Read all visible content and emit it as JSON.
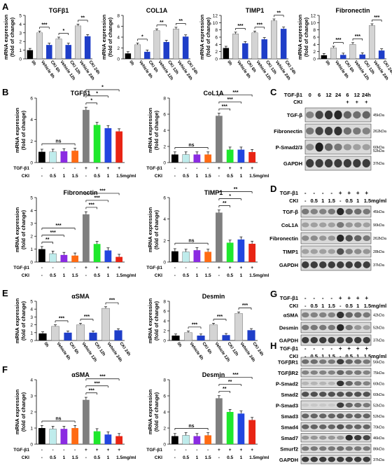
{
  "panels": {
    "A": "A",
    "B": "B",
    "C": "C",
    "D": "D",
    "E": "E",
    "F": "F",
    "G": "G",
    "H": "H"
  },
  "colors": {
    "black": "#000000",
    "light_gray": "#d4d4d4",
    "blue": "#1f3ec8",
    "dark_gray": "#7f7f7f",
    "cyan": "#bfecec",
    "magenta": "#8a2be2",
    "orange": "#ff6a13",
    "green": "#1ee82c",
    "mid_blue": "#2246e0",
    "red": "#e82414"
  },
  "labels": {
    "ylabel": "mRNA expression\n(fold of change)",
    "ylabel_line1": "mRNA expression",
    "ylabel_line2": "(fold of change)",
    "time_cats": [
      "0h",
      "Vehicle 6h",
      "CKI 6h",
      "Vehicle 12h",
      "CKI 12h",
      "Vehicle 24h",
      "CKI 24h"
    ],
    "tgf_row": [
      "-",
      "-",
      "-",
      "-",
      "+",
      "+",
      "+",
      "+"
    ],
    "cki_row": [
      "-",
      "0.5",
      "1",
      "1.5",
      "-",
      "0.5",
      "1",
      "1.5mg/ml"
    ],
    "tgf_label": "TGF-β1",
    "cki_label": "CKI"
  },
  "chart_data": [
    {
      "panel": "A",
      "type": "bar",
      "title": "TGFβ1",
      "ylim": [
        0,
        5
      ],
      "yticks": [
        0,
        1,
        2,
        3,
        4,
        5
      ],
      "categories": [
        "0h",
        "Vehicle 6h",
        "CKI 6h",
        "Vehicle 12h",
        "CKI 12h",
        "Vehicle 24h",
        "CKI 24h"
      ],
      "values": [
        1.0,
        3.0,
        1.6,
        2.3,
        1.6,
        3.8,
        2.6
      ],
      "sig": [
        {
          "a": 1,
          "b": 2,
          "t": "***"
        },
        {
          "a": 3,
          "b": 4,
          "t": "*"
        },
        {
          "a": 5,
          "b": 6,
          "t": "**"
        }
      ]
    },
    {
      "panel": "A",
      "type": "bar",
      "title": "COL1A",
      "ylim": [
        0,
        8
      ],
      "yticks": [
        0,
        2,
        4,
        6,
        8
      ],
      "categories": [
        "0h",
        "Vehicle 6h",
        "CKI 6h",
        "Vehicle 12h",
        "CKI 12h",
        "Vehicle 24h",
        "CKI 24h"
      ],
      "values": [
        1.0,
        2.6,
        1.3,
        5.2,
        3.1,
        5.5,
        4.1
      ],
      "sig": [
        {
          "a": 1,
          "b": 2,
          "t": "*"
        },
        {
          "a": 3,
          "b": 4,
          "t": "**"
        },
        {
          "a": 5,
          "b": 6,
          "t": "**"
        }
      ]
    },
    {
      "panel": "A",
      "type": "bar",
      "title": "TIMP1",
      "ylim": [
        0,
        12
      ],
      "yticks": [
        0,
        2,
        4,
        6,
        8,
        10,
        12
      ],
      "categories": [
        "0h",
        "Vehicle 6h",
        "CKI 6h",
        "Vehicle 12h",
        "CKI 12h",
        "Vehicle 24h",
        "CKI 24h"
      ],
      "values": [
        3.0,
        6.9,
        4.3,
        7.2,
        5.4,
        10.5,
        8.3
      ],
      "sig": [
        {
          "a": 1,
          "b": 2,
          "t": "***"
        },
        {
          "a": 3,
          "b": 4,
          "t": "***"
        },
        {
          "a": 5,
          "b": 6,
          "t": "**"
        }
      ]
    },
    {
      "panel": "A",
      "type": "bar",
      "title": "Fibronectin",
      "ylim": [
        0,
        12
      ],
      "yticks": [
        0,
        2,
        4,
        6,
        8,
        10,
        12
      ],
      "categories": [
        "0h",
        "Vehicle 6h",
        "CKI 6h",
        "Vehicle 12h",
        "CKI 12h",
        "Vehicle 24h",
        "CKI 24h"
      ],
      "values": [
        1.0,
        3.0,
        1.1,
        4.0,
        1.2,
        9.2,
        2.3
      ],
      "sig": [
        {
          "a": 1,
          "b": 2,
          "t": "***"
        },
        {
          "a": 3,
          "b": 4,
          "t": "***"
        },
        {
          "a": 5,
          "b": 6,
          "t": "***"
        }
      ]
    },
    {
      "panel": "B",
      "type": "bar",
      "title": "TGFβ1",
      "ylim": [
        0,
        6
      ],
      "yticks": [
        0,
        2,
        4,
        6
      ],
      "values": [
        1.0,
        1.0,
        1.05,
        1.1,
        4.9,
        3.5,
        3.2,
        2.9
      ],
      "sig": [
        {
          "a": 0,
          "b": 3,
          "t": "ns"
        },
        {
          "a": 4,
          "b": 5,
          "t": "*"
        },
        {
          "a": 4,
          "b": 6,
          "t": "*"
        },
        {
          "a": 4,
          "b": 7,
          "t": "*"
        }
      ]
    },
    {
      "panel": "B",
      "type": "bar",
      "title": "CoL1A",
      "ylim": [
        0,
        8
      ],
      "yticks": [
        0,
        2,
        4,
        6,
        8
      ],
      "values": [
        1.0,
        1.0,
        1.0,
        1.0,
        5.8,
        1.6,
        1.6,
        1.3
      ],
      "sig": [
        {
          "a": 0,
          "b": 3,
          "t": "ns"
        },
        {
          "a": 4,
          "b": 5,
          "t": "***"
        },
        {
          "a": 4,
          "b": 6,
          "t": "***"
        },
        {
          "a": 4,
          "b": 7,
          "t": "***"
        }
      ]
    },
    {
      "panel": "B",
      "type": "bar",
      "title": "Fibronectin",
      "ylim": [
        0,
        5
      ],
      "yticks": [
        0,
        1,
        2,
        3,
        4,
        5
      ],
      "values": [
        1.0,
        0.65,
        0.55,
        0.5,
        3.7,
        1.4,
        0.9,
        0.4
      ],
      "sig": [
        {
          "a": 0,
          "b": 1,
          "t": "**"
        },
        {
          "a": 0,
          "b": 2,
          "t": "***"
        },
        {
          "a": 0,
          "b": 3,
          "t": "***"
        },
        {
          "a": 4,
          "b": 5,
          "t": "***"
        },
        {
          "a": 4,
          "b": 6,
          "t": "***"
        },
        {
          "a": 4,
          "b": 7,
          "t": "***"
        }
      ]
    },
    {
      "panel": "B",
      "type": "bar",
      "title": "TIMP1",
      "ylim": [
        0,
        6
      ],
      "yticks": [
        0,
        2,
        4,
        6
      ],
      "values": [
        1.0,
        0.95,
        1.1,
        0.95,
        4.6,
        1.8,
        2.1,
        1.7
      ],
      "sig": [
        {
          "a": 0,
          "b": 3,
          "t": "ns"
        },
        {
          "a": 4,
          "b": 5,
          "t": "**"
        },
        {
          "a": 4,
          "b": 6,
          "t": "*"
        },
        {
          "a": 4,
          "b": 7,
          "t": "**"
        }
      ]
    },
    {
      "panel": "E",
      "type": "bar",
      "title": "αSMA",
      "ylim": [
        0,
        5
      ],
      "yticks": [
        0,
        1,
        2,
        3,
        4,
        5
      ],
      "categories": [
        "0h",
        "Vehicle 6h",
        "CKI 6h",
        "Vehicle 12h",
        "CKI 12h",
        "Vehicle 24h",
        "CKI 24h"
      ],
      "values": [
        0.9,
        1.8,
        1.0,
        2.0,
        1.0,
        4.1,
        1.3
      ],
      "sig": [
        {
          "a": 1,
          "b": 2,
          "t": "***"
        },
        {
          "a": 3,
          "b": 4,
          "t": "***"
        },
        {
          "a": 5,
          "b": 6,
          "t": "***"
        }
      ]
    },
    {
      "panel": "E",
      "type": "bar",
      "title": "Desmin",
      "ylim": [
        0,
        8
      ],
      "yticks": [
        0,
        2,
        4,
        6,
        8
      ],
      "categories": [
        "0h",
        "Vehicle 6h",
        "CKI 6h",
        "Vehicle 12h",
        "CKI 12h",
        "Vehicle 24h",
        "CKI 24h"
      ],
      "values": [
        1.0,
        1.6,
        1.0,
        3.2,
        1.1,
        5.5,
        2.1
      ],
      "sig": [
        {
          "a": 1,
          "b": 2,
          "t": "***"
        },
        {
          "a": 3,
          "b": 4,
          "t": "***"
        },
        {
          "a": 5,
          "b": 6,
          "t": "***"
        }
      ]
    },
    {
      "panel": "F",
      "type": "bar",
      "title": "αSMA",
      "ylim": [
        0,
        4
      ],
      "yticks": [
        0,
        1,
        2,
        3,
        4
      ],
      "values": [
        1.0,
        0.95,
        0.95,
        1.0,
        2.75,
        0.8,
        0.6,
        0.5
      ],
      "sig": [
        {
          "a": 0,
          "b": 3,
          "t": "ns"
        },
        {
          "a": 4,
          "b": 5,
          "t": "***"
        },
        {
          "a": 4,
          "b": 6,
          "t": "***"
        },
        {
          "a": 4,
          "b": 7,
          "t": "***"
        }
      ]
    },
    {
      "panel": "F",
      "type": "bar",
      "title": "Desmin",
      "ylim": [
        0,
        8
      ],
      "yticks": [
        0,
        2,
        4,
        6,
        8
      ],
      "values": [
        1.0,
        1.1,
        1.0,
        1.1,
        5.7,
        4.0,
        3.8,
        3.0
      ],
      "sig": [
        {
          "a": 0,
          "b": 3,
          "t": "ns"
        },
        {
          "a": 4,
          "b": 5,
          "t": "**"
        },
        {
          "a": 4,
          "b": 6,
          "t": "**"
        },
        {
          "a": 4,
          "b": 7,
          "t": "***"
        }
      ]
    }
  ],
  "blots": {
    "C": {
      "tgf_label": "TGF-β1",
      "cki_label": "CKI",
      "times": [
        "0",
        "6",
        "12",
        "24",
        "6",
        "12",
        "24h"
      ],
      "cki": [
        "",
        "",
        "",
        "",
        "+",
        "+",
        "+"
      ],
      "bands": [
        {
          "name": "TGF-β",
          "kda": "45kDa",
          "intensity": [
            0.45,
            0.75,
            0.85,
            0.9,
            0.6,
            0.55,
            0.6
          ]
        },
        {
          "name": "Fibronectin",
          "kda": "262kDa",
          "intensity": [
            0.5,
            0.75,
            0.8,
            0.85,
            0.55,
            0.5,
            0.45
          ]
        },
        {
          "name": "P-Smad2/3",
          "kda": "60kDa",
          "intensity": [
            0.4,
            0.95,
            0.6,
            0.5,
            0.35,
            0.3,
            0.3
          ]
        },
        {
          "name": "",
          "kda": "52kDa",
          "intensity": []
        },
        {
          "name": "GAPDH",
          "kda": "37kDa",
          "intensity": [
            0.8,
            0.8,
            0.8,
            0.8,
            0.8,
            0.8,
            0.8
          ]
        }
      ]
    },
    "D": {
      "tgf": [
        "-",
        "-",
        "-",
        "-",
        "+",
        "+",
        "+",
        "+"
      ],
      "cki": [
        "-",
        "0.5",
        "1",
        "1.5",
        "-",
        "0.5",
        "1",
        "1.5mg/ml"
      ],
      "bands": [
        {
          "name": "TGF-β",
          "kda": "45kDa",
          "intensity": [
            0.5,
            0.45,
            0.45,
            0.5,
            0.9,
            0.6,
            0.55,
            0.5
          ]
        },
        {
          "name": "CoL1A",
          "kda": "90kDa",
          "intensity": [
            0.3,
            0.3,
            0.3,
            0.3,
            0.5,
            0.35,
            0.35,
            0.3
          ]
        },
        {
          "name": "Fibronectin",
          "kda": "262kDa",
          "intensity": [
            0.4,
            0.4,
            0.35,
            0.35,
            0.9,
            0.7,
            0.6,
            0.5
          ]
        },
        {
          "name": "TIMP1",
          "kda": "28kDa",
          "intensity": [
            0.3,
            0.3,
            0.3,
            0.3,
            0.7,
            0.45,
            0.4,
            0.35
          ]
        },
        {
          "name": "GAPDH",
          "kda": "37kDa",
          "intensity": [
            0.8,
            0.8,
            0.8,
            0.8,
            0.8,
            0.8,
            0.8,
            0.8
          ]
        }
      ]
    },
    "G": {
      "tgf": [
        "-",
        "-",
        "-",
        "-",
        "+",
        "+",
        "+",
        "+"
      ],
      "cki": [
        "-",
        "0.5",
        "1",
        "1.5",
        "-",
        "0.5",
        "1",
        "1.5mg/ml"
      ],
      "bands": [
        {
          "name": "αSMA",
          "kda": "42kDa",
          "intensity": [
            0.45,
            0.45,
            0.45,
            0.45,
            0.85,
            0.6,
            0.55,
            0.5
          ]
        },
        {
          "name": "Desmin",
          "kda": "52kDa",
          "intensity": [
            0.5,
            0.5,
            0.5,
            0.5,
            0.9,
            0.5,
            0.35,
            0.3
          ]
        },
        {
          "name": "GAPDH",
          "kda": "37kDa",
          "intensity": [
            0.8,
            0.8,
            0.8,
            0.8,
            0.8,
            0.8,
            0.8,
            0.8
          ]
        }
      ]
    },
    "H": {
      "tgf": [
        "-",
        "-",
        "-",
        "-",
        "+",
        "+",
        "+",
        "+"
      ],
      "cki": [
        "-",
        "0.5",
        "1",
        "1.5",
        "-",
        "0.5",
        "1",
        "1.5mg/ml"
      ],
      "bands": [
        {
          "name": "TGFβR1",
          "kda": "56kDa",
          "intensity": [
            0.55,
            0.55,
            0.5,
            0.5,
            0.8,
            0.6,
            0.55,
            0.5
          ]
        },
        {
          "name": "TGFβR2",
          "kda": "75kDa",
          "intensity": [
            0.45,
            0.45,
            0.45,
            0.45,
            0.6,
            0.5,
            0.5,
            0.45
          ]
        },
        {
          "name": "P-Smad2",
          "kda": "60kDa",
          "intensity": [
            0.2,
            0.2,
            0.2,
            0.2,
            0.85,
            0.6,
            0.5,
            0.45
          ]
        },
        {
          "name": "Smad2",
          "kda": "60kDa",
          "intensity": [
            0.7,
            0.7,
            0.7,
            0.7,
            0.7,
            0.7,
            0.7,
            0.7
          ]
        },
        {
          "name": "P-Smad3",
          "kda": "52kDa",
          "intensity": [
            0.1,
            0.1,
            0.1,
            0.1,
            0.8,
            0.6,
            0.55,
            0.5
          ]
        },
        {
          "name": "Smad3",
          "kda": "52kDa",
          "intensity": [
            0.6,
            0.6,
            0.6,
            0.6,
            0.65,
            0.6,
            0.6,
            0.6
          ]
        },
        {
          "name": "Smad4",
          "kda": "70kDa",
          "intensity": [
            0.6,
            0.6,
            0.6,
            0.6,
            0.7,
            0.6,
            0.6,
            0.6
          ]
        },
        {
          "name": "Smad7",
          "kda": "46kDa",
          "intensity": [
            0.35,
            0.35,
            0.35,
            0.35,
            0.35,
            0.9,
            0.8,
            0.75
          ]
        },
        {
          "name": "Smurf2",
          "kda": "86kDa",
          "intensity": [
            0.5,
            0.5,
            0.5,
            0.5,
            0.55,
            0.5,
            0.5,
            0.5
          ]
        },
        {
          "name": "GAPDH",
          "kda": "37kDa",
          "intensity": [
            0.8,
            0.8,
            0.8,
            0.8,
            0.8,
            0.8,
            0.8,
            0.8
          ]
        }
      ]
    }
  }
}
